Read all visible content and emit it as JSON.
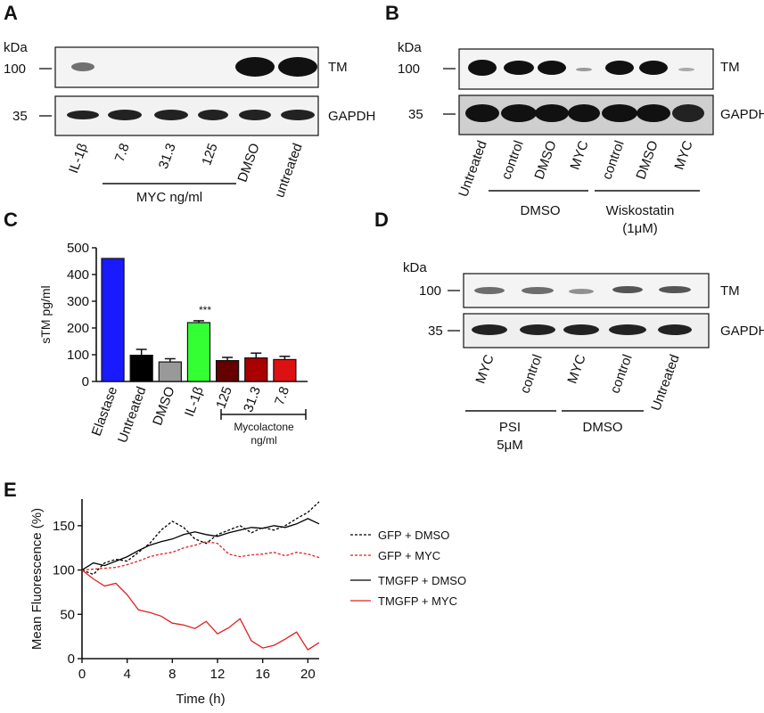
{
  "panels": {
    "A": {
      "letter": "A",
      "kda": "kDa",
      "markers": [
        "100",
        "35"
      ],
      "bands": [
        "TM",
        "GAPDH"
      ],
      "lanes": [
        "IL-1β",
        "7.8",
        "31.3",
        "125",
        "DMSO",
        "untreated"
      ],
      "group_label": "MYC ng/ml"
    },
    "B": {
      "letter": "B",
      "kda": "kDa",
      "markers": [
        "100",
        "35"
      ],
      "bands": [
        "TM",
        "GAPDH"
      ],
      "lanes": [
        "Untreated",
        "control",
        "DMSO",
        "MYC",
        "control",
        "DMSO",
        "MYC"
      ],
      "group1_label": "DMSO",
      "group2_label": "Wiskostatin",
      "group2_sub": "(1μM)"
    },
    "C": {
      "letter": "C",
      "asterisks": "***",
      "group_label": "Mycolactone",
      "group_sub": "ng/ml"
    },
    "D": {
      "letter": "D",
      "kda": "kDa",
      "markers": [
        "100",
        "35"
      ],
      "bands": [
        "TM",
        "GAPDH"
      ],
      "lanes": [
        "MYC",
        "control",
        "MYC",
        "control",
        "Untreated"
      ],
      "group1_label": "PSI",
      "group1_sub": "5μM",
      "group2_label": "DMSO"
    },
    "E": {
      "letter": "E"
    }
  },
  "chart_data": [
    {
      "type": "bar",
      "panel": "C",
      "ylabel": "sTM pg/ml",
      "ylim": [
        0,
        500
      ],
      "yticks": [
        0,
        100,
        200,
        300,
        400,
        500
      ],
      "categories": [
        "Elastase",
        "Untreated",
        "DMSO",
        "IL-1β",
        "125",
        "31.3",
        "7.8"
      ],
      "values": [
        460,
        98,
        73,
        220,
        78,
        88,
        82
      ],
      "errors": [
        0,
        22,
        12,
        7,
        12,
        18,
        12
      ],
      "colors": [
        "#1a1aff",
        "#000000",
        "#999999",
        "#33ff33",
        "#660000",
        "#aa0000",
        "#dd1111"
      ]
    },
    {
      "type": "line",
      "panel": "E",
      "xlabel": "Time (h)",
      "ylabel": "Mean Fluorescence (%)",
      "xlim": [
        0,
        21
      ],
      "ylim": [
        0,
        180
      ],
      "xticks": [
        0,
        4,
        8,
        12,
        16,
        20
      ],
      "yticks": [
        0,
        50,
        100,
        150
      ],
      "x": [
        0,
        1,
        2,
        3,
        4,
        5,
        6,
        7,
        8,
        9,
        10,
        11,
        12,
        13,
        14,
        15,
        16,
        17,
        18,
        19,
        20,
        21
      ],
      "series": [
        {
          "name": "GFP + DMSO",
          "color": "#000000",
          "dash": true,
          "values": [
            100,
            95,
            108,
            112,
            110,
            120,
            130,
            145,
            155,
            148,
            135,
            130,
            140,
            145,
            150,
            142,
            148,
            145,
            150,
            158,
            165,
            177
          ]
        },
        {
          "name": "GFP + MYC",
          "color": "#e02020",
          "dash": true,
          "values": [
            100,
            101,
            102,
            103,
            106,
            110,
            115,
            118,
            120,
            125,
            128,
            132,
            130,
            118,
            115,
            117,
            118,
            120,
            116,
            120,
            118,
            114
          ]
        },
        {
          "name": "TMGFP + DMSO",
          "color": "#000000",
          "dash": false,
          "values": [
            100,
            108,
            105,
            110,
            115,
            122,
            128,
            132,
            135,
            140,
            143,
            140,
            138,
            142,
            145,
            148,
            147,
            150,
            148,
            152,
            158,
            152
          ]
        },
        {
          "name": "TMGFP + MYC",
          "color": "#e02020",
          "dash": false,
          "values": [
            100,
            90,
            82,
            85,
            72,
            55,
            52,
            48,
            40,
            38,
            34,
            42,
            28,
            35,
            45,
            20,
            12,
            15,
            22,
            30,
            10,
            18
          ]
        }
      ]
    }
  ]
}
